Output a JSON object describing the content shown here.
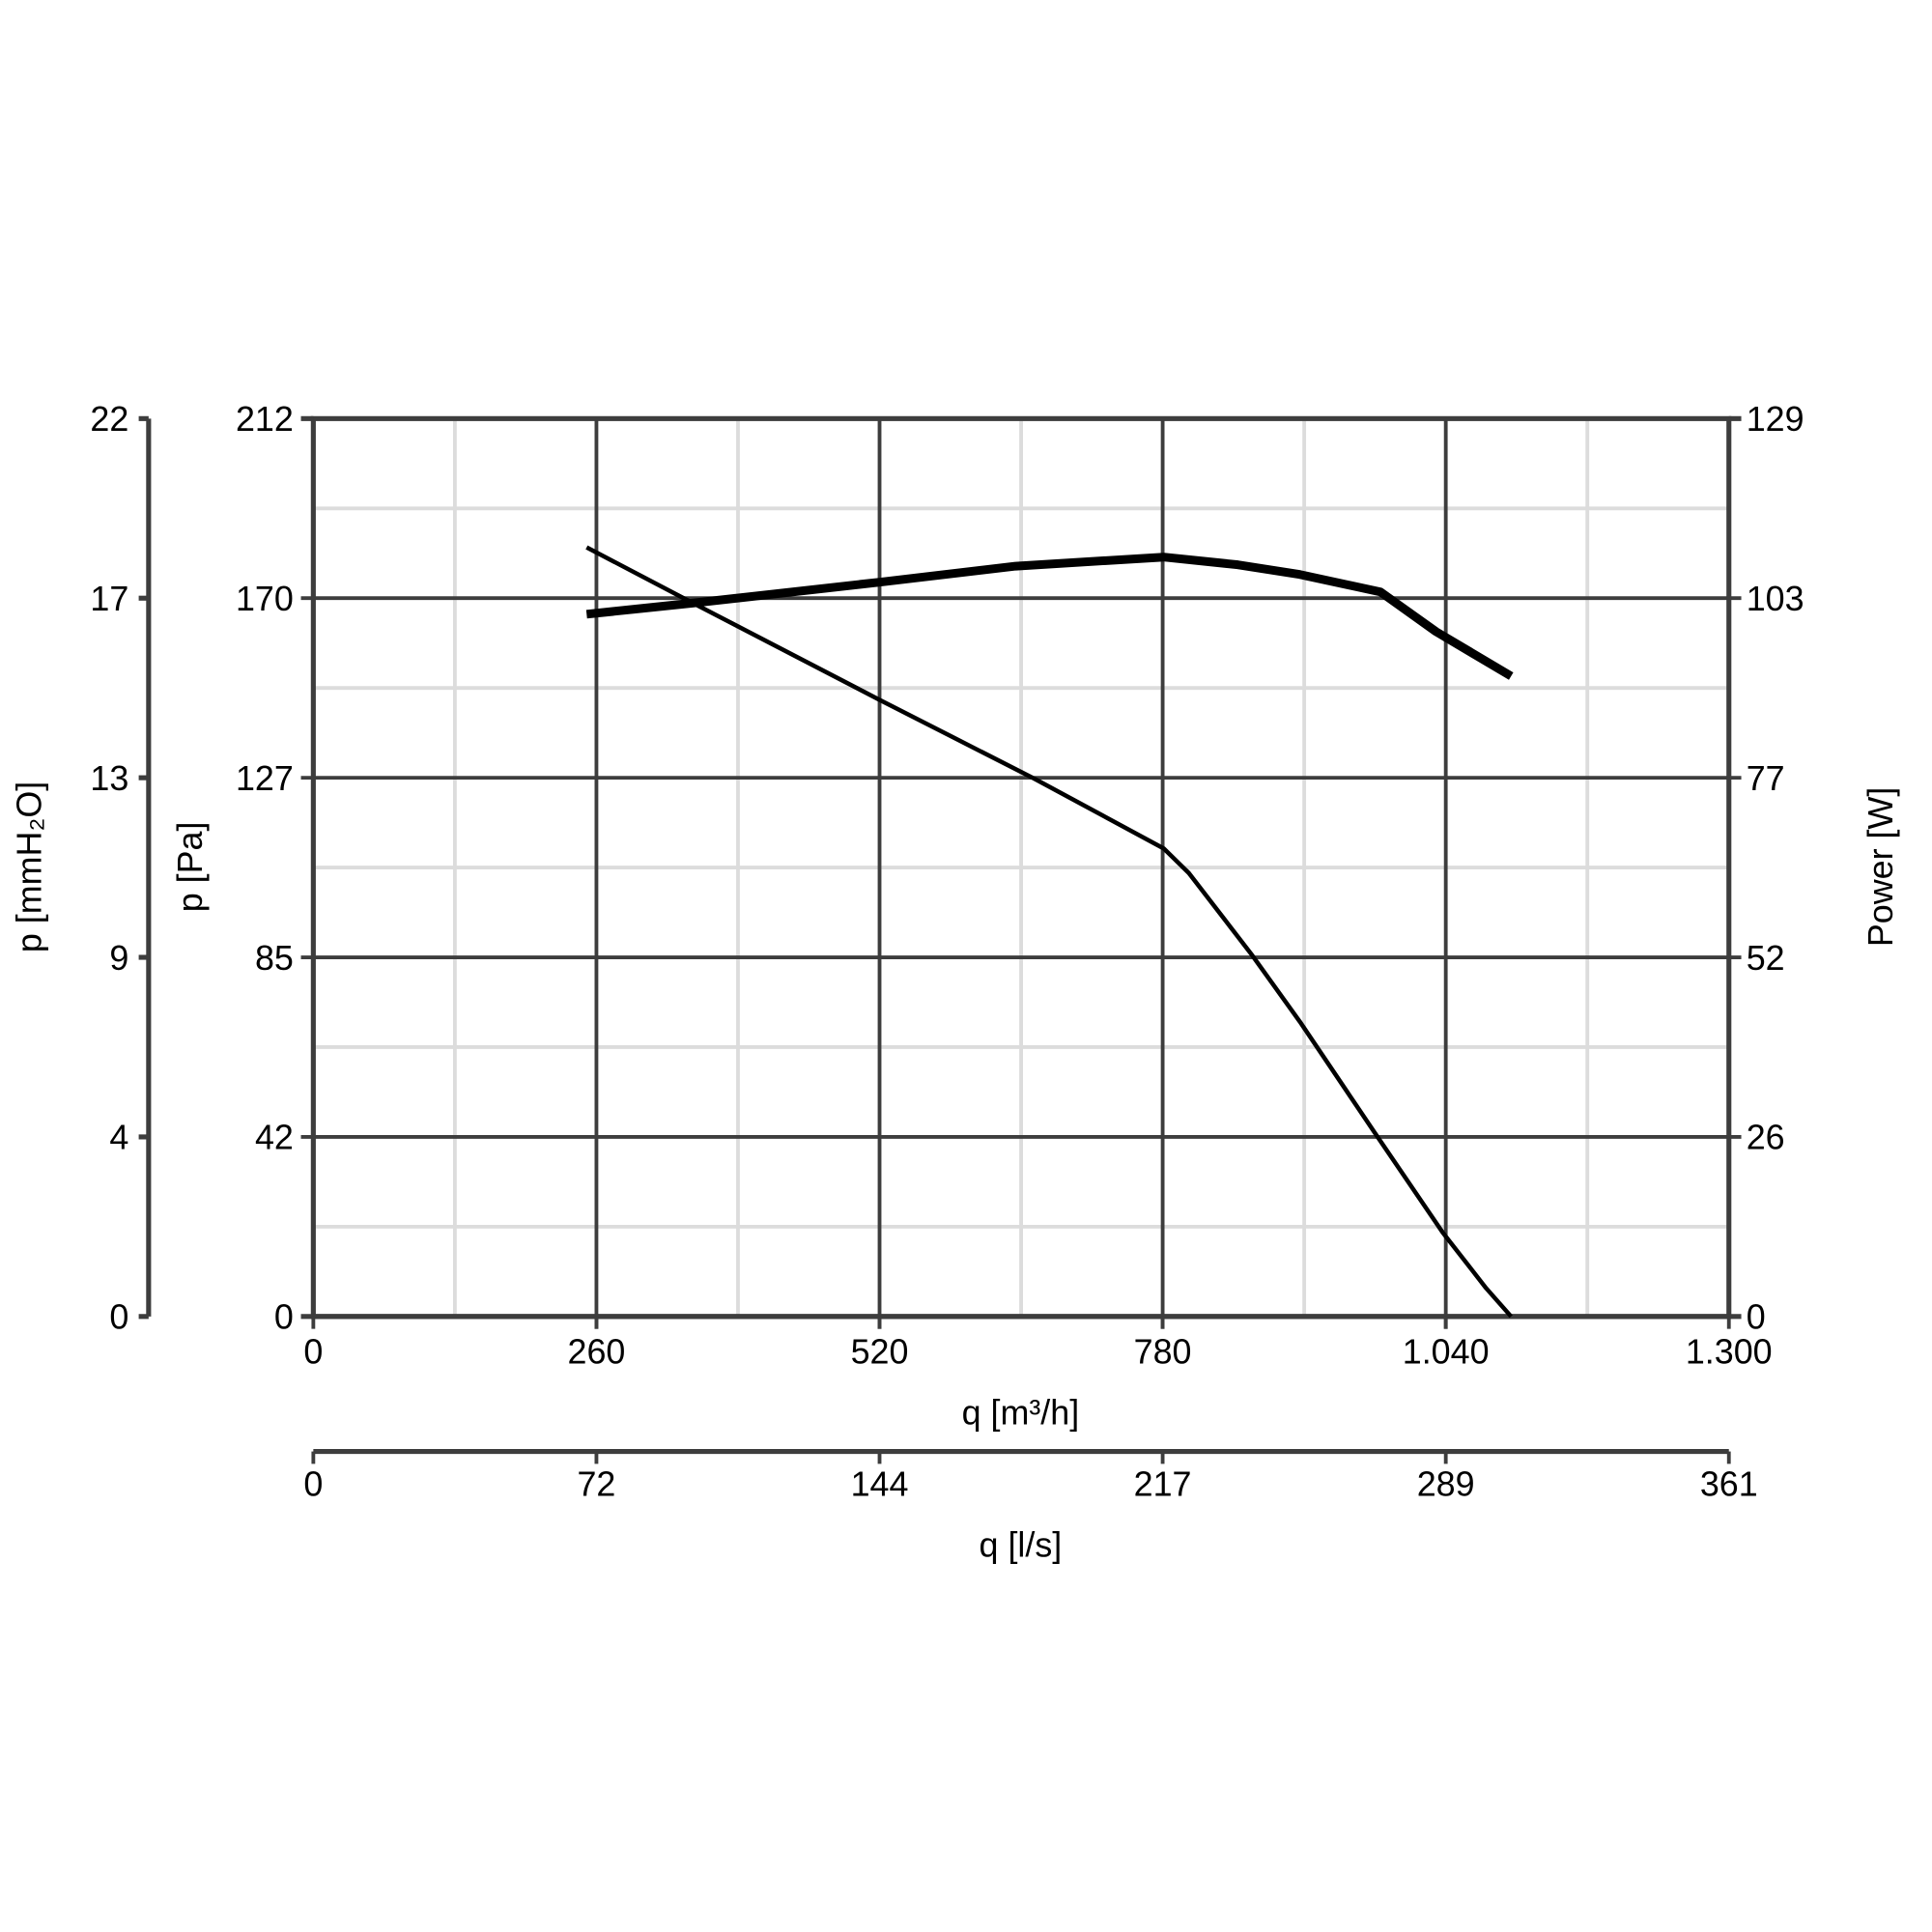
{
  "chart_data": {
    "type": "line",
    "xlabel": "q [m³/h]",
    "xlabel2": "q [l/s]",
    "ylabel": "p [Pa]",
    "ylabel2": "p [mmH₂O]",
    "ylabel_right": "Power [W]",
    "xlim": [
      0,
      1300
    ],
    "ylim": [
      0,
      212
    ],
    "ylim_right": [
      0,
      129
    ],
    "x_ticks": [
      "0",
      "260",
      "520",
      "780",
      "1.040",
      "1.300"
    ],
    "x2_ticks": [
      "0",
      "72",
      "144",
      "217",
      "289",
      "361"
    ],
    "y_ticks": [
      "0",
      "42",
      "85",
      "127",
      "170",
      "212"
    ],
    "y2_ticks": [
      "0",
      "4",
      "9",
      "13",
      "17",
      "22"
    ],
    "y_right_ticks": [
      "0",
      "26",
      "52",
      "77",
      "103",
      "129"
    ],
    "grid": true,
    "series": [
      {
        "axis": "left",
        "color": "#000000",
        "x": [
          251,
          349,
          520,
          662,
          781,
          804,
          861,
          906,
          975,
          1037,
          1077,
          1100
        ],
        "y": [
          181.6,
          168.4,
          145.6,
          127,
          110.5,
          104.7,
          85.7,
          69.6,
          43.3,
          19.9,
          6.7,
          0
        ]
      },
      {
        "axis": "right",
        "color": "#000000",
        "x": [
          251,
          349,
          520,
          645,
          781,
          849,
          906,
          980,
          1031,
          1100
        ],
        "y": [
          100.9,
          102.5,
          105.5,
          107.8,
          109.1,
          108,
          106.6,
          104.1,
          98.4,
          92.0
        ]
      }
    ]
  }
}
